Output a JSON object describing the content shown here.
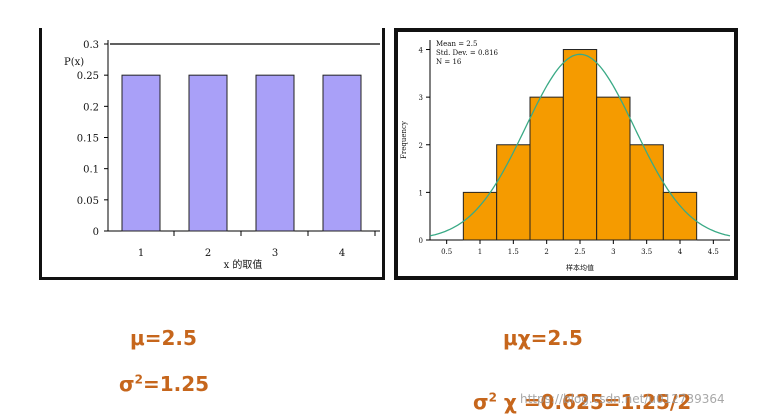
{
  "chart_data": [
    {
      "type": "bar",
      "ylabel": "P(x)",
      "xlabel": "x 的取值",
      "categories": [
        "1",
        "2",
        "3",
        "4"
      ],
      "values": [
        0.25,
        0.25,
        0.25,
        0.25
      ],
      "ylim": [
        0,
        0.3
      ],
      "yticks": [
        "0",
        "0.05",
        "0.1",
        "0.15",
        "0.2",
        "0.25",
        "0.3"
      ],
      "reference_line": 0.3,
      "bar_color": "#a9a0f8"
    },
    {
      "type": "bar",
      "xlabel": "样本均值",
      "ylabel": "Frequency",
      "bins": [
        {
          "x0": 0.75,
          "x1": 1.25,
          "count": 1
        },
        {
          "x0": 1.25,
          "x1": 1.75,
          "count": 2
        },
        {
          "x0": 1.75,
          "x1": 2.25,
          "count": 3
        },
        {
          "x0": 2.25,
          "x1": 2.75,
          "count": 4
        },
        {
          "x0": 2.75,
          "x1": 3.25,
          "count": 3
        },
        {
          "x0": 3.25,
          "x1": 3.75,
          "count": 2
        },
        {
          "x0": 3.75,
          "x1": 4.25,
          "count": 1
        }
      ],
      "xticks": [
        "0.5",
        "1",
        "1.5",
        "2",
        "2.5",
        "3",
        "3.5",
        "4",
        "4.5"
      ],
      "yticks": [
        "0",
        "1",
        "2",
        "3",
        "4"
      ],
      "xlim": [
        0.25,
        4.75
      ],
      "ylim": [
        0,
        4.2
      ],
      "normal_curve": {
        "mean": 2.5,
        "sd": 0.816
      },
      "stats": [
        "Mean = 2.5",
        "Std. Dev. = 0.816",
        "N = 16"
      ],
      "bar_color": "#f59b00",
      "curve_color": "#3aaa86"
    }
  ],
  "formulas": {
    "mu": "μ=2.5",
    "mu_x": "μχ=2.5",
    "sigma_sq_base": "σ",
    "sigma_sq_rest": "=1.25",
    "sigma_sq_x_base": "σ",
    "sigma_sq_x_mid": " χ ",
    "sigma_sq_x_rest": "=0.625=1.25/2",
    "superscript": "2"
  },
  "watermark": "https://blog.csdn.net/u012739364"
}
